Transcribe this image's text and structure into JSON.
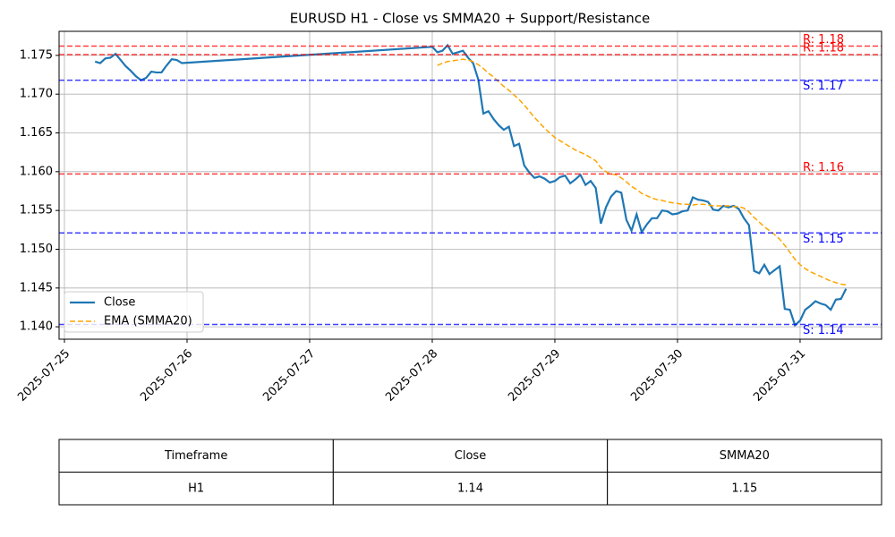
{
  "chart_data": {
    "type": "line",
    "title": "EURUSD H1 - Close vs SMMA20 + Support/Resistance",
    "x": [
      6,
      7,
      8,
      9,
      10,
      11,
      12,
      13,
      14,
      15,
      16,
      17,
      18,
      19,
      20,
      21,
      22,
      23,
      72,
      73,
      74,
      75,
      76,
      77,
      78,
      79,
      80,
      81,
      82,
      83,
      84,
      85,
      86,
      87,
      88,
      89,
      90,
      91,
      92,
      93,
      94,
      95,
      96,
      97,
      98,
      99,
      100,
      101,
      102,
      103,
      104,
      105,
      106,
      107,
      108,
      109,
      110,
      111,
      112,
      113,
      114,
      115,
      116,
      117,
      118,
      119,
      120,
      121,
      122,
      123,
      124,
      125,
      126,
      127,
      128,
      129,
      130,
      131,
      132,
      133,
      134,
      135,
      136,
      137,
      138,
      139,
      140,
      141,
      142,
      143,
      144,
      145,
      146,
      147,
      148,
      149,
      150,
      151,
      152,
      153
    ],
    "series": [
      {
        "name": "Close",
        "color": "#1f77b4",
        "dash": false,
        "values": [
          1.1742,
          1.174,
          1.1746,
          1.1747,
          1.1752,
          1.1744,
          1.1736,
          1.173,
          1.1723,
          1.1718,
          1.1721,
          1.1729,
          1.1728,
          1.1728,
          1.1737,
          1.1745,
          1.1744,
          1.174,
          1.1761,
          1.1754,
          1.1756,
          1.1763,
          1.1752,
          1.1754,
          1.1756,
          1.1747,
          1.174,
          1.1719,
          1.1675,
          1.1678,
          1.1668,
          1.166,
          1.1654,
          1.1658,
          1.1633,
          1.1636,
          1.1608,
          1.1599,
          1.1592,
          1.1594,
          1.1591,
          1.1586,
          1.1588,
          1.1593,
          1.1595,
          1.1585,
          1.159,
          1.1596,
          1.1583,
          1.1588,
          1.1579,
          1.1533,
          1.1554,
          1.1568,
          1.1575,
          1.1573,
          1.1538,
          1.1524,
          1.1545,
          1.1522,
          1.1532,
          1.154,
          1.154,
          1.155,
          1.1549,
          1.1545,
          1.1546,
          1.1549,
          1.155,
          1.1567,
          1.1564,
          1.1563,
          1.1561,
          1.1551,
          1.155,
          1.1556,
          1.1554,
          1.1556,
          1.1552,
          1.154,
          1.1531,
          1.1472,
          1.1469,
          1.148,
          1.1468,
          1.1473,
          1.1478,
          1.1423,
          1.1422,
          1.1402,
          1.1408,
          1.1422,
          1.1427,
          1.1433,
          1.143,
          1.1428,
          1.1422,
          1.1435,
          1.1436,
          1.1449
        ]
      },
      {
        "name": "EMA (SMMA20)",
        "color": "#ffa500",
        "dash": true,
        "values": [
          null,
          null,
          null,
          null,
          null,
          null,
          null,
          null,
          null,
          null,
          null,
          null,
          null,
          null,
          null,
          null,
          null,
          null,
          null,
          1.1737,
          1.174,
          1.1742,
          1.1743,
          1.1744,
          1.1745,
          1.1744,
          1.1742,
          1.1738,
          1.1733,
          1.1727,
          1.1722,
          1.1716,
          1.171,
          1.1705,
          1.1699,
          1.1693,
          1.1686,
          1.1678,
          1.167,
          1.1663,
          1.1656,
          1.165,
          1.1644,
          1.164,
          1.1636,
          1.1632,
          1.1628,
          1.1625,
          1.1622,
          1.1618,
          1.1614,
          1.1605,
          1.16,
          1.1597,
          1.1596,
          1.1592,
          1.1587,
          1.1581,
          1.1577,
          1.1572,
          1.1569,
          1.1566,
          1.1564,
          1.1563,
          1.1561,
          1.156,
          1.1559,
          1.1558,
          1.1558,
          1.1557,
          1.1558,
          1.1558,
          1.1557,
          1.1556,
          1.1556,
          1.1556,
          1.1556,
          1.1555,
          1.1555,
          1.1553,
          1.1548,
          1.1541,
          1.1535,
          1.1529,
          1.1524,
          1.1519,
          1.1513,
          1.1505,
          1.1496,
          1.1487,
          1.148,
          1.1475,
          1.1471,
          1.1468,
          1.1465,
          1.1462,
          1.1459,
          1.1457,
          1.1455,
          1.1454
        ]
      }
    ],
    "levels": [
      {
        "value": 1.1762,
        "label": "R: 1.18",
        "color": "#ff0000"
      },
      {
        "value": 1.1751,
        "label": "R: 1.18",
        "color": "#ff0000"
      },
      {
        "value": 1.1718,
        "label": "S: 1.17",
        "color": "#0000ff"
      },
      {
        "value": 1.1597,
        "label": "R: 1.16",
        "color": "#ff0000"
      },
      {
        "value": 1.1521,
        "label": "S: 1.15",
        "color": "#0000ff"
      },
      {
        "value": 1.1403,
        "label": "S: 1.14",
        "color": "#0000ff"
      }
    ],
    "xlim": [
      -1.05,
      159.95
    ],
    "xticks": [
      {
        "value": 0,
        "label": "2025-07-25"
      },
      {
        "value": 24,
        "label": "2025-07-26"
      },
      {
        "value": 48,
        "label": "2025-07-27"
      },
      {
        "value": 72,
        "label": "2025-07-28"
      },
      {
        "value": 96,
        "label": "2025-07-29"
      },
      {
        "value": 120,
        "label": "2025-07-30"
      },
      {
        "value": 144,
        "label": "2025-07-31"
      }
    ],
    "ylim": [
      1.1384,
      1.1781
    ],
    "yticks": [
      {
        "value": 1.14,
        "label": "1.140"
      },
      {
        "value": 1.145,
        "label": "1.145"
      },
      {
        "value": 1.15,
        "label": "1.150"
      },
      {
        "value": 1.155,
        "label": "1.155"
      },
      {
        "value": 1.16,
        "label": "1.160"
      },
      {
        "value": 1.165,
        "label": "1.165"
      },
      {
        "value": 1.17,
        "label": "1.170"
      },
      {
        "value": 1.175,
        "label": "1.175"
      }
    ],
    "grid": true,
    "legend": "lower-left"
  },
  "table": {
    "columns": [
      "Timeframe",
      "Close",
      "SMMA20"
    ],
    "rows": [
      [
        "H1",
        "1.14",
        "1.15"
      ]
    ]
  }
}
